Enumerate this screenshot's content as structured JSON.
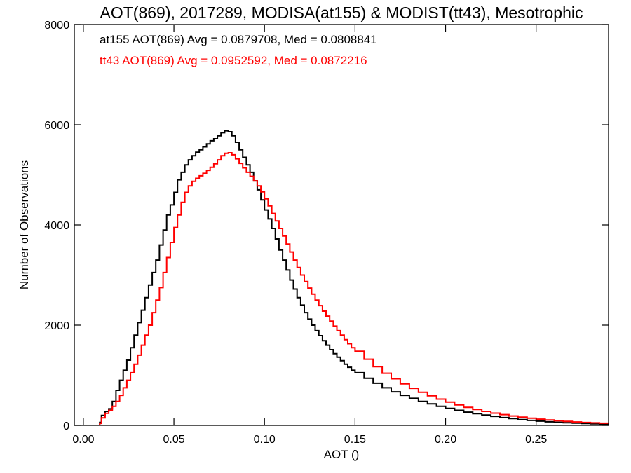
{
  "chart_data": {
    "type": "line",
    "step": true,
    "title": "AOT(869), 2017289, MODISA(at155) & MODIST(tt43), Mesotrophic",
    "xlabel": "AOT ()",
    "ylabel": "Number of Observations",
    "xlim": [
      -0.005,
      0.29
    ],
    "ylim": [
      0,
      8000
    ],
    "xticks": [
      0.0,
      0.05,
      0.1,
      0.15,
      0.2,
      0.25
    ],
    "xtick_labels": [
      "0.00",
      "0.05",
      "0.10",
      "0.15",
      "0.20",
      "0.25"
    ],
    "yticks": [
      0,
      2000,
      4000,
      6000,
      8000
    ],
    "ytick_labels": [
      "0",
      "2000",
      "4000",
      "6000",
      "8000"
    ],
    "grid": false,
    "legend": "top-left",
    "series": [
      {
        "name": "at155",
        "color": "#000000",
        "stats_text": "at155 AOT(869) Avg = 0.0879708, Med = 0.0808841",
        "points": [
          [
            -0.005,
            0
          ],
          [
            0.008,
            0
          ],
          [
            0.009,
            60
          ],
          [
            0.01,
            200
          ],
          [
            0.012,
            280
          ],
          [
            0.014,
            330
          ],
          [
            0.016,
            480
          ],
          [
            0.018,
            700
          ],
          [
            0.02,
            900
          ],
          [
            0.022,
            1100
          ],
          [
            0.024,
            1300
          ],
          [
            0.026,
            1550
          ],
          [
            0.028,
            1800
          ],
          [
            0.03,
            2050
          ],
          [
            0.032,
            2300
          ],
          [
            0.034,
            2550
          ],
          [
            0.036,
            2800
          ],
          [
            0.038,
            3050
          ],
          [
            0.04,
            3300
          ],
          [
            0.042,
            3600
          ],
          [
            0.044,
            3900
          ],
          [
            0.046,
            4200
          ],
          [
            0.048,
            4400
          ],
          [
            0.05,
            4650
          ],
          [
            0.052,
            4900
          ],
          [
            0.054,
            5050
          ],
          [
            0.056,
            5200
          ],
          [
            0.058,
            5300
          ],
          [
            0.06,
            5380
          ],
          [
            0.062,
            5450
          ],
          [
            0.064,
            5500
          ],
          [
            0.066,
            5560
          ],
          [
            0.068,
            5620
          ],
          [
            0.07,
            5680
          ],
          [
            0.072,
            5720
          ],
          [
            0.074,
            5780
          ],
          [
            0.076,
            5840
          ],
          [
            0.078,
            5880
          ],
          [
            0.08,
            5860
          ],
          [
            0.082,
            5780
          ],
          [
            0.084,
            5650
          ],
          [
            0.086,
            5500
          ],
          [
            0.088,
            5350
          ],
          [
            0.09,
            5200
          ],
          [
            0.092,
            5050
          ],
          [
            0.094,
            4880
          ],
          [
            0.096,
            4700
          ],
          [
            0.098,
            4500
          ],
          [
            0.1,
            4300
          ],
          [
            0.102,
            4120
          ],
          [
            0.104,
            3930
          ],
          [
            0.106,
            3720
          ],
          [
            0.108,
            3500
          ],
          [
            0.11,
            3300
          ],
          [
            0.112,
            3100
          ],
          [
            0.114,
            2900
          ],
          [
            0.116,
            2720
          ],
          [
            0.118,
            2550
          ],
          [
            0.12,
            2400
          ],
          [
            0.122,
            2250
          ],
          [
            0.124,
            2120
          ],
          [
            0.126,
            2000
          ],
          [
            0.128,
            1890
          ],
          [
            0.13,
            1790
          ],
          [
            0.132,
            1690
          ],
          [
            0.134,
            1600
          ],
          [
            0.136,
            1510
          ],
          [
            0.138,
            1430
          ],
          [
            0.14,
            1360
          ],
          [
            0.142,
            1290
          ],
          [
            0.144,
            1220
          ],
          [
            0.146,
            1160
          ],
          [
            0.148,
            1100
          ],
          [
            0.15,
            1050
          ],
          [
            0.155,
            940
          ],
          [
            0.16,
            840
          ],
          [
            0.165,
            750
          ],
          [
            0.17,
            670
          ],
          [
            0.175,
            600
          ],
          [
            0.18,
            540
          ],
          [
            0.185,
            480
          ],
          [
            0.19,
            430
          ],
          [
            0.195,
            380
          ],
          [
            0.2,
            340
          ],
          [
            0.205,
            300
          ],
          [
            0.21,
            265
          ],
          [
            0.215,
            235
          ],
          [
            0.22,
            205
          ],
          [
            0.225,
            180
          ],
          [
            0.23,
            155
          ],
          [
            0.235,
            135
          ],
          [
            0.24,
            115
          ],
          [
            0.245,
            100
          ],
          [
            0.25,
            85
          ],
          [
            0.255,
            72
          ],
          [
            0.26,
            62
          ],
          [
            0.265,
            52
          ],
          [
            0.27,
            45
          ],
          [
            0.275,
            38
          ],
          [
            0.28,
            32
          ],
          [
            0.285,
            28
          ],
          [
            0.29,
            24
          ]
        ]
      },
      {
        "name": "tt43",
        "color": "#ff0000",
        "stats_text": "tt43 AOT(869) Avg = 0.0952592, Med = 0.0872216",
        "points": [
          [
            -0.005,
            0
          ],
          [
            0.008,
            0
          ],
          [
            0.009,
            40
          ],
          [
            0.01,
            150
          ],
          [
            0.012,
            240
          ],
          [
            0.014,
            300
          ],
          [
            0.016,
            380
          ],
          [
            0.018,
            480
          ],
          [
            0.02,
            600
          ],
          [
            0.022,
            750
          ],
          [
            0.024,
            900
          ],
          [
            0.026,
            1050
          ],
          [
            0.028,
            1220
          ],
          [
            0.03,
            1400
          ],
          [
            0.032,
            1600
          ],
          [
            0.034,
            1800
          ],
          [
            0.036,
            2000
          ],
          [
            0.038,
            2250
          ],
          [
            0.04,
            2500
          ],
          [
            0.042,
            2750
          ],
          [
            0.044,
            3050
          ],
          [
            0.046,
            3350
          ],
          [
            0.048,
            3650
          ],
          [
            0.05,
            3950
          ],
          [
            0.052,
            4200
          ],
          [
            0.054,
            4450
          ],
          [
            0.056,
            4650
          ],
          [
            0.058,
            4780
          ],
          [
            0.06,
            4870
          ],
          [
            0.062,
            4930
          ],
          [
            0.064,
            4980
          ],
          [
            0.066,
            5030
          ],
          [
            0.068,
            5090
          ],
          [
            0.07,
            5150
          ],
          [
            0.072,
            5220
          ],
          [
            0.074,
            5300
          ],
          [
            0.076,
            5380
          ],
          [
            0.078,
            5430
          ],
          [
            0.08,
            5440
          ],
          [
            0.082,
            5400
          ],
          [
            0.084,
            5320
          ],
          [
            0.086,
            5230
          ],
          [
            0.088,
            5140
          ],
          [
            0.09,
            5050
          ],
          [
            0.092,
            4970
          ],
          [
            0.094,
            4880
          ],
          [
            0.096,
            4780
          ],
          [
            0.098,
            4660
          ],
          [
            0.1,
            4520
          ],
          [
            0.102,
            4380
          ],
          [
            0.104,
            4230
          ],
          [
            0.106,
            4080
          ],
          [
            0.108,
            3930
          ],
          [
            0.11,
            3780
          ],
          [
            0.112,
            3620
          ],
          [
            0.114,
            3460
          ],
          [
            0.116,
            3300
          ],
          [
            0.118,
            3150
          ],
          [
            0.12,
            3000
          ],
          [
            0.122,
            2870
          ],
          [
            0.124,
            2740
          ],
          [
            0.126,
            2620
          ],
          [
            0.128,
            2500
          ],
          [
            0.13,
            2390
          ],
          [
            0.132,
            2280
          ],
          [
            0.134,
            2180
          ],
          [
            0.136,
            2080
          ],
          [
            0.138,
            1980
          ],
          [
            0.14,
            1890
          ],
          [
            0.142,
            1800
          ],
          [
            0.144,
            1710
          ],
          [
            0.146,
            1630
          ],
          [
            0.148,
            1550
          ],
          [
            0.15,
            1480
          ],
          [
            0.155,
            1320
          ],
          [
            0.16,
            1170
          ],
          [
            0.165,
            1040
          ],
          [
            0.17,
            930
          ],
          [
            0.175,
            830
          ],
          [
            0.18,
            740
          ],
          [
            0.185,
            660
          ],
          [
            0.19,
            590
          ],
          [
            0.195,
            525
          ],
          [
            0.2,
            465
          ],
          [
            0.205,
            410
          ],
          [
            0.21,
            360
          ],
          [
            0.215,
            318
          ],
          [
            0.22,
            280
          ],
          [
            0.225,
            245
          ],
          [
            0.23,
            215
          ],
          [
            0.235,
            188
          ],
          [
            0.24,
            165
          ],
          [
            0.245,
            144
          ],
          [
            0.25,
            125
          ],
          [
            0.255,
            108
          ],
          [
            0.26,
            93
          ],
          [
            0.265,
            80
          ],
          [
            0.27,
            68
          ],
          [
            0.275,
            58
          ],
          [
            0.28,
            50
          ],
          [
            0.285,
            43
          ],
          [
            0.29,
            37
          ]
        ]
      }
    ]
  }
}
